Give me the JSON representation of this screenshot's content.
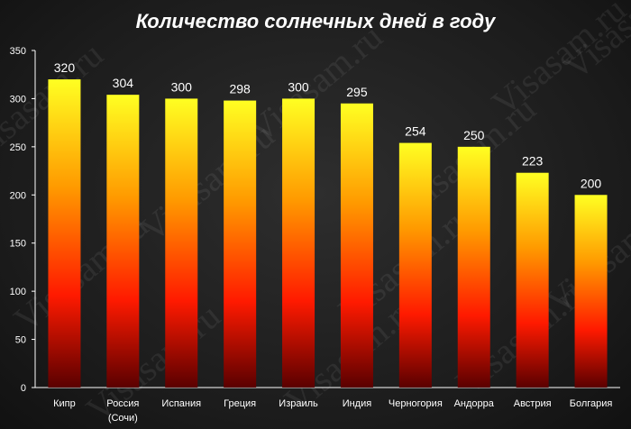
{
  "watermark": "Visasam.ru",
  "colors": {
    "bar_top": "#ffff22",
    "bar_mid": "#ff9a00",
    "bar_low": "#ff1a00",
    "bar_bottom": "#5a0000",
    "axis": "#ffffff"
  },
  "chart_data": {
    "type": "bar",
    "title": "Количество солнечных дней в году",
    "xlabel": "",
    "ylabel": "",
    "categories": [
      "Кипр",
      "Россия\n(Сочи)",
      "Испания",
      "Греция",
      "Израиль",
      "Индия",
      "Черногория",
      "Андорра",
      "Австрия",
      "Болгария"
    ],
    "values": [
      320,
      304,
      300,
      298,
      300,
      295,
      254,
      250,
      223,
      200
    ],
    "ylim": [
      0,
      350
    ],
    "yticks": [
      0,
      50,
      100,
      150,
      200,
      250,
      300,
      350
    ],
    "grid": false,
    "legend": "none"
  }
}
